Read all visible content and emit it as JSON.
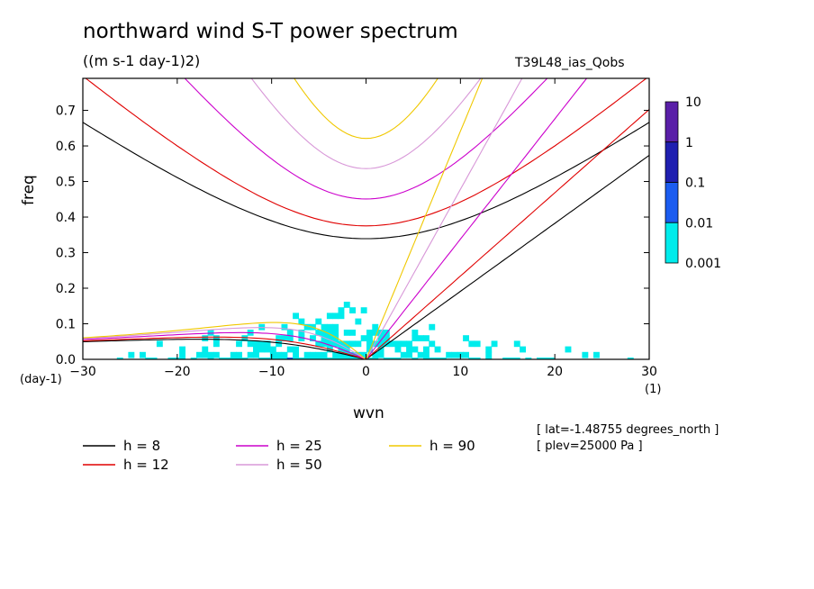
{
  "chart_data": {
    "type": "heatmap",
    "title": "northward wind S-T power spectrum",
    "units": "((m s-1 day-1)2)",
    "experiment": "T39L48_ias_Qobs",
    "xlabel": "wvn",
    "ylabel": "freq",
    "x_units_left": "(day-1)",
    "x_units_right": "(1)",
    "xlim": [
      -30,
      30
    ],
    "ylim": [
      0,
      0.79
    ],
    "xticks": [
      "−30",
      "−20",
      "−10",
      "0",
      "10",
      "20",
      "30"
    ],
    "xtick_values": [
      -30,
      -20,
      -10,
      0,
      10,
      20,
      30
    ],
    "yticks": [
      "0.0",
      "0.1",
      "0.2",
      "0.3",
      "0.4",
      "0.5",
      "0.6",
      "0.7"
    ],
    "ytick_values": [
      0.0,
      0.1,
      0.2,
      0.3,
      0.4,
      0.5,
      0.6,
      0.7
    ],
    "colorbar": {
      "levels": [
        "10",
        "1",
        "0.1",
        "0.01",
        "0.001"
      ],
      "colors": [
        "#5a1fa8",
        "#1f1fb0",
        "#1b5cf0",
        "#00ecec"
      ]
    },
    "notes": [
      "[ lat=-1.48755 degrees_north ]",
      "[ plev=25000 Pa ]"
    ],
    "dispersion_curves": [
      {
        "name": "h =  8",
        "h": 8,
        "color": "#000000"
      },
      {
        "name": "h = 12",
        "h": 12,
        "color": "#e00000"
      },
      {
        "name": "h = 25",
        "h": 25,
        "color": "#cc00cc"
      },
      {
        "name": "h = 50",
        "h": 50,
        "color": "#d898d8"
      },
      {
        "name": "h = 90",
        "h": 90,
        "color": "#f0c800"
      }
    ],
    "kelvin_wave_lines": {
      "color": "#e8e800"
    }
  }
}
